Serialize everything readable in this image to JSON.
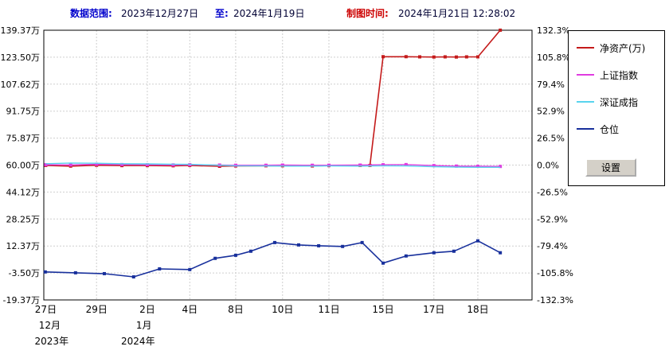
{
  "header": {
    "range_label": "数据范围:",
    "range_start": "2023年12月27日",
    "to_label": "至:",
    "range_end": "2024年1月19日",
    "time_label": "制图时间:",
    "time_value": "2024年1月21日 12:28:02"
  },
  "legend": {
    "items": [
      {
        "label": "净资产(万)",
        "color": "#c41a1a"
      },
      {
        "label": "上证指数",
        "color": "#e03ce0"
      },
      {
        "label": "深证成指",
        "color": "#58d4ee"
      },
      {
        "label": "仓位",
        "color": "#18309c"
      }
    ],
    "settings_button": "设置"
  },
  "chart_data": {
    "type": "line",
    "title": "",
    "grid": true,
    "legend_position": "right",
    "left_axis": {
      "unit": "万",
      "max": 139.37,
      "min": -19.37,
      "ticks": [
        "139.37万",
        "123.50万",
        "107.62万",
        "91.75万",
        "75.87万",
        "60.00万",
        "44.12万",
        "28.25万",
        "12.37万",
        "-3.50万",
        "-19.37万"
      ]
    },
    "right_axis": {
      "unit": "%",
      "max": 132.3,
      "min": -132.3,
      "ticks": [
        "132.3%",
        "105.8%",
        "79.4%",
        "52.9%",
        "26.5%",
        "0.0%",
        "-26.5%",
        "-52.9%",
        "-79.4%",
        "-105.8%",
        "-132.3%"
      ]
    },
    "x_axis": {
      "day_ticks": [
        {
          "label": "27日",
          "pos": 0.004
        },
        {
          "label": "29日",
          "pos": 0.108
        },
        {
          "label": "2日",
          "pos": 0.212
        },
        {
          "label": "4日",
          "pos": 0.299
        },
        {
          "label": "8日",
          "pos": 0.393
        },
        {
          "label": "10日",
          "pos": 0.489
        },
        {
          "label": "11日",
          "pos": 0.584
        },
        {
          "label": "15日",
          "pos": 0.695
        },
        {
          "label": "17日",
          "pos": 0.799
        },
        {
          "label": "18日",
          "pos": 0.889
        }
      ],
      "month_ticks": [
        {
          "label": "12月",
          "pos": 0.012
        },
        {
          "label": "1月",
          "pos": 0.205
        }
      ],
      "year_ticks": [
        {
          "label": "2023年",
          "pos": 0.016
        },
        {
          "label": "2024年",
          "pos": 0.193
        }
      ]
    },
    "series": [
      {
        "id": "net-assets",
        "name": "净资产(万)",
        "color": "#c41a1a",
        "width": 1.6,
        "markers": true,
        "axis": "left",
        "points": [
          [
            0.004,
            59.8
          ],
          [
            0.055,
            59.4
          ],
          [
            0.108,
            59.9
          ],
          [
            0.16,
            59.7
          ],
          [
            0.212,
            59.7
          ],
          [
            0.265,
            59.6
          ],
          [
            0.299,
            59.8
          ],
          [
            0.36,
            59.3
          ],
          [
            0.393,
            59.5
          ],
          [
            0.455,
            59.6
          ],
          [
            0.489,
            59.6
          ],
          [
            0.55,
            59.5
          ],
          [
            0.584,
            59.7
          ],
          [
            0.648,
            59.8
          ],
          [
            0.668,
            59.8
          ],
          [
            0.695,
            123.8
          ],
          [
            0.742,
            123.8
          ],
          [
            0.77,
            123.7
          ],
          [
            0.799,
            123.6
          ],
          [
            0.822,
            123.7
          ],
          [
            0.845,
            123.6
          ],
          [
            0.866,
            123.7
          ],
          [
            0.889,
            123.7
          ],
          [
            0.935,
            139.4
          ]
        ]
      },
      {
        "id": "shanghai-index",
        "name": "上证指数",
        "color": "#e03ce0",
        "width": 1.4,
        "markers": true,
        "axis": "left",
        "points": [
          [
            0.004,
            60.2
          ],
          [
            0.055,
            60.1
          ],
          [
            0.108,
            60.5
          ],
          [
            0.16,
            60.3
          ],
          [
            0.212,
            60.2
          ],
          [
            0.265,
            60.1
          ],
          [
            0.299,
            60.2
          ],
          [
            0.36,
            60.0
          ],
          [
            0.393,
            59.9
          ],
          [
            0.455,
            59.9
          ],
          [
            0.489,
            60.0
          ],
          [
            0.55,
            59.9
          ],
          [
            0.584,
            59.9
          ],
          [
            0.648,
            60.0
          ],
          [
            0.695,
            60.2
          ],
          [
            0.742,
            60.3
          ],
          [
            0.799,
            59.7
          ],
          [
            0.845,
            59.4
          ],
          [
            0.889,
            59.3
          ],
          [
            0.935,
            59.2
          ]
        ]
      },
      {
        "id": "shenzhen-index",
        "name": "深证成指",
        "color": "#58d4ee",
        "width": 1.4,
        "markers": false,
        "axis": "left",
        "points": [
          [
            0.004,
            60.8
          ],
          [
            0.055,
            61.2
          ],
          [
            0.108,
            61.1
          ],
          [
            0.16,
            60.8
          ],
          [
            0.212,
            60.7
          ],
          [
            0.265,
            60.5
          ],
          [
            0.299,
            60.4
          ],
          [
            0.36,
            59.9
          ],
          [
            0.393,
            59.6
          ],
          [
            0.455,
            59.5
          ],
          [
            0.489,
            59.4
          ],
          [
            0.55,
            59.4
          ],
          [
            0.584,
            59.5
          ],
          [
            0.648,
            59.4
          ],
          [
            0.695,
            59.6
          ],
          [
            0.742,
            59.5
          ],
          [
            0.799,
            59.0
          ],
          [
            0.845,
            58.8
          ],
          [
            0.889,
            58.7
          ],
          [
            0.935,
            58.7
          ]
        ]
      },
      {
        "id": "position",
        "name": "仓位",
        "color": "#18309c",
        "width": 1.6,
        "markers": true,
        "axis": "left",
        "points": [
          [
            0.003,
            -2.9
          ],
          [
            0.065,
            -3.4
          ],
          [
            0.124,
            -3.9
          ],
          [
            0.184,
            -5.8
          ],
          [
            0.237,
            -1.1
          ],
          [
            0.299,
            -1.5
          ],
          [
            0.351,
            5.1
          ],
          [
            0.393,
            6.9
          ],
          [
            0.424,
            9.3
          ],
          [
            0.473,
            14.4
          ],
          [
            0.522,
            13.0
          ],
          [
            0.563,
            12.5
          ],
          [
            0.612,
            12.1
          ],
          [
            0.652,
            14.4
          ],
          [
            0.695,
            2.3
          ],
          [
            0.742,
            6.5
          ],
          [
            0.799,
            8.4
          ],
          [
            0.84,
            9.3
          ],
          [
            0.889,
            15.4
          ],
          [
            0.935,
            8.4
          ]
        ]
      }
    ]
  }
}
